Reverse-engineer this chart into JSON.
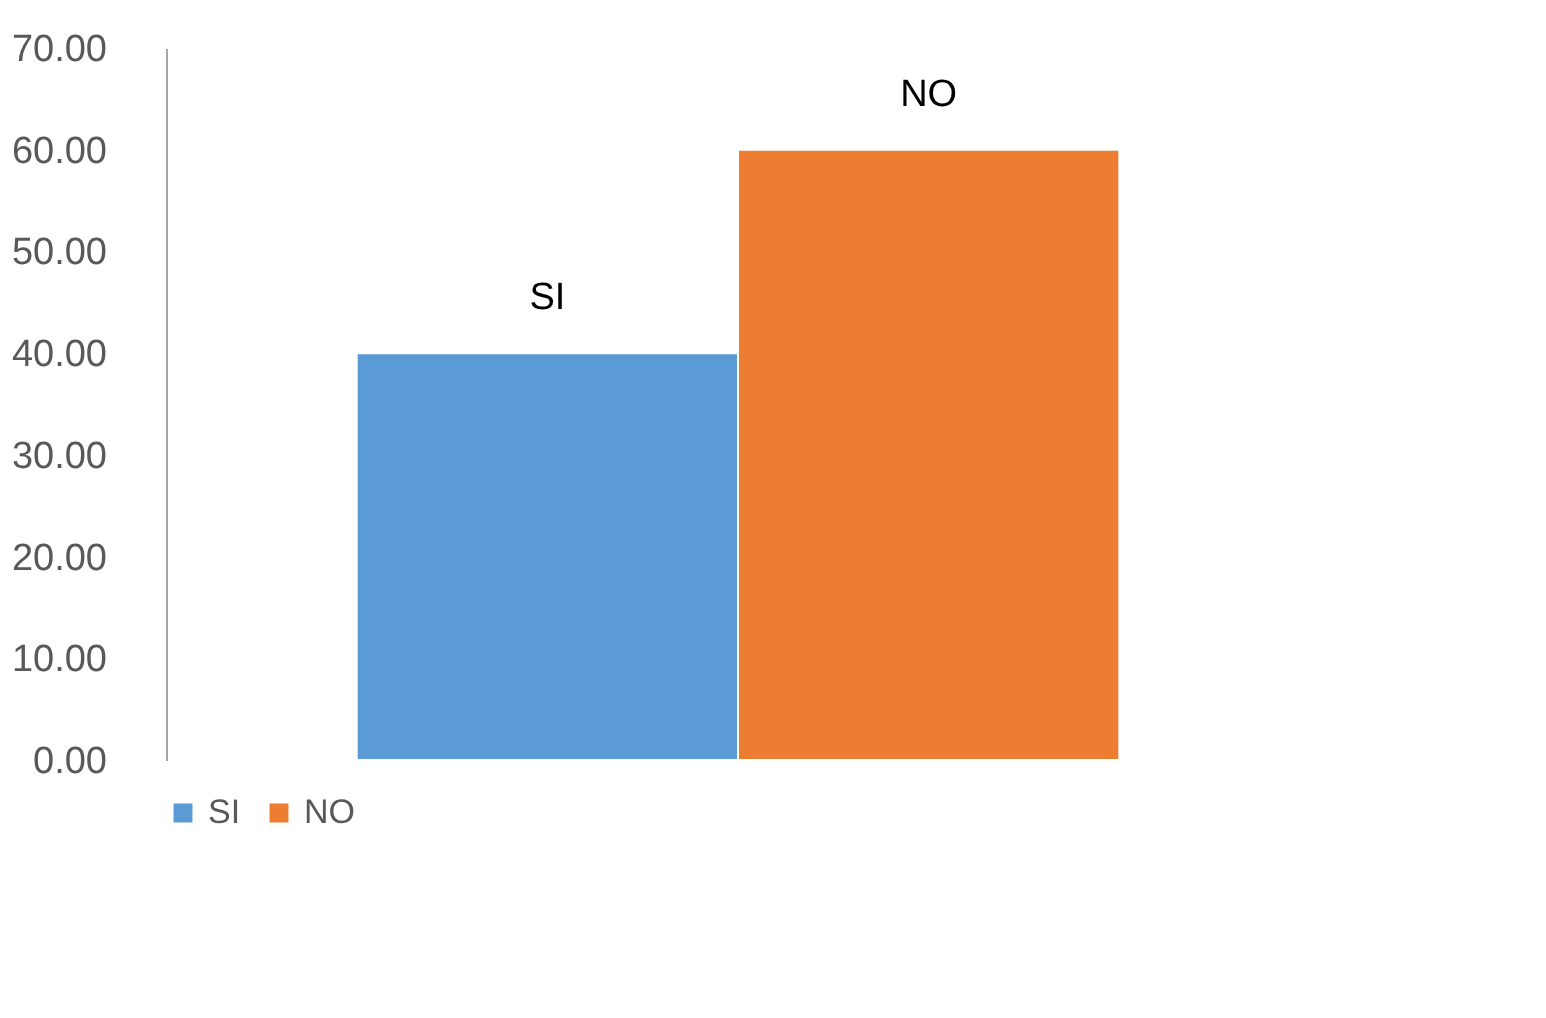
{
  "chart_data": {
    "type": "bar",
    "categories": [
      null
    ],
    "series": [
      {
        "name": "SI",
        "color": "#5b9bd5",
        "values": [
          40
        ]
      },
      {
        "name": "NO",
        "color": "#ed7d31",
        "values": [
          60
        ]
      }
    ],
    "ylim": [
      0,
      70
    ],
    "yticks": [
      {
        "value": 0,
        "label": "0.00"
      },
      {
        "value": 10,
        "label": "10.00"
      },
      {
        "value": 20,
        "label": "20.00"
      },
      {
        "value": 30,
        "label": "30.00"
      },
      {
        "value": 40,
        "label": "40.00"
      },
      {
        "value": 50,
        "label": "50.00"
      },
      {
        "value": 60,
        "label": "60.00"
      },
      {
        "value": 70,
        "label": "70.00"
      }
    ],
    "grid": false,
    "legend": "bottom",
    "tick_labels": "y"
  }
}
